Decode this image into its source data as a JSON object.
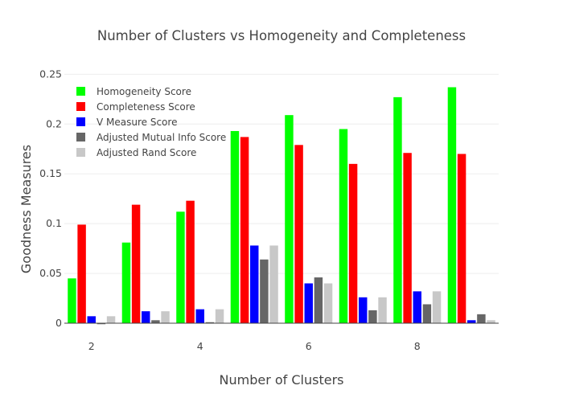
{
  "chart_data": {
    "type": "bar",
    "title": "Number of Clusters vs Homogeneity and Completeness",
    "xlabel": "Number of Clusters",
    "ylabel": "Goodness Measures",
    "x": [
      2,
      3,
      4,
      5,
      6,
      7,
      8,
      9
    ],
    "xticks": [
      "2",
      "4",
      "6",
      "8"
    ],
    "xtick_values": [
      2,
      4,
      6,
      8
    ],
    "xlim": [
      1.5,
      9.5
    ],
    "yticks": [
      "0",
      "0.05",
      "0.1",
      "0.15",
      "0.2",
      "0.25"
    ],
    "ytick_values": [
      0,
      0.05,
      0.1,
      0.15,
      0.2,
      0.25
    ],
    "ylim": [
      0,
      0.26
    ],
    "grid": true,
    "legend_position": "top-left",
    "series": [
      {
        "name": "Homogeneity Score",
        "color": "#00ff00",
        "values": [
          0.045,
          0.081,
          0.112,
          0.193,
          0.209,
          0.195,
          0.227,
          0.237
        ]
      },
      {
        "name": "Completeness Score",
        "color": "#ff0000",
        "values": [
          0.099,
          0.119,
          0.123,
          0.187,
          0.179,
          0.16,
          0.171,
          0.17
        ]
      },
      {
        "name": "V Measure Score",
        "color": "#0000ff",
        "values": [
          0.007,
          0.012,
          0.014,
          0.078,
          0.04,
          0.026,
          0.032,
          0.003
        ]
      },
      {
        "name": "Adjusted Mutual Info Score",
        "color": "#666666",
        "values": [
          -0.001,
          0.003,
          0.001,
          0.064,
          0.046,
          0.013,
          0.019,
          0.009
        ]
      },
      {
        "name": "Adjusted Rand Score",
        "color": "#c8c8c8",
        "values": [
          0.007,
          0.012,
          0.014,
          0.078,
          0.04,
          0.026,
          0.032,
          0.003
        ]
      }
    ]
  }
}
